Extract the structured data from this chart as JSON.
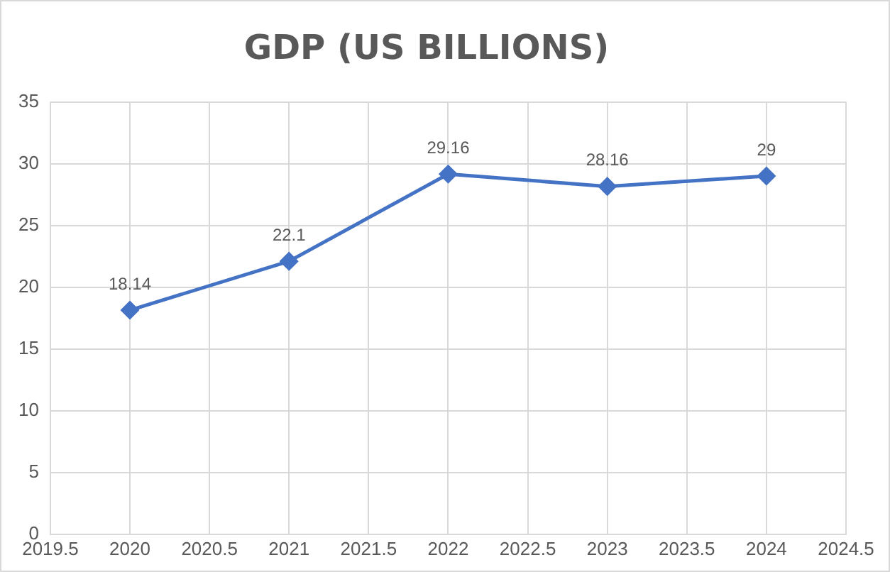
{
  "chart_data": {
    "type": "line",
    "title": "GDP (US BILLIONS)",
    "x": [
      2020,
      2021,
      2022,
      2023,
      2024
    ],
    "series": [
      {
        "color": "#4472c4",
        "values": [
          18.14,
          22.1,
          29.16,
          28.16,
          29
        ]
      }
    ],
    "xlim": [
      2019.5,
      2024.5
    ],
    "xticks": [
      2019.5,
      2020,
      2020.5,
      2021,
      2021.5,
      2022,
      2022.5,
      2023,
      2023.5,
      2024,
      2024.5
    ],
    "ylim": [
      0,
      35
    ],
    "yticks": [
      0,
      5,
      10,
      15,
      20,
      25,
      30,
      35
    ],
    "grid": true,
    "legend": false,
    "marker": "diamond",
    "line_style": "solid",
    "data_labels": true
  }
}
